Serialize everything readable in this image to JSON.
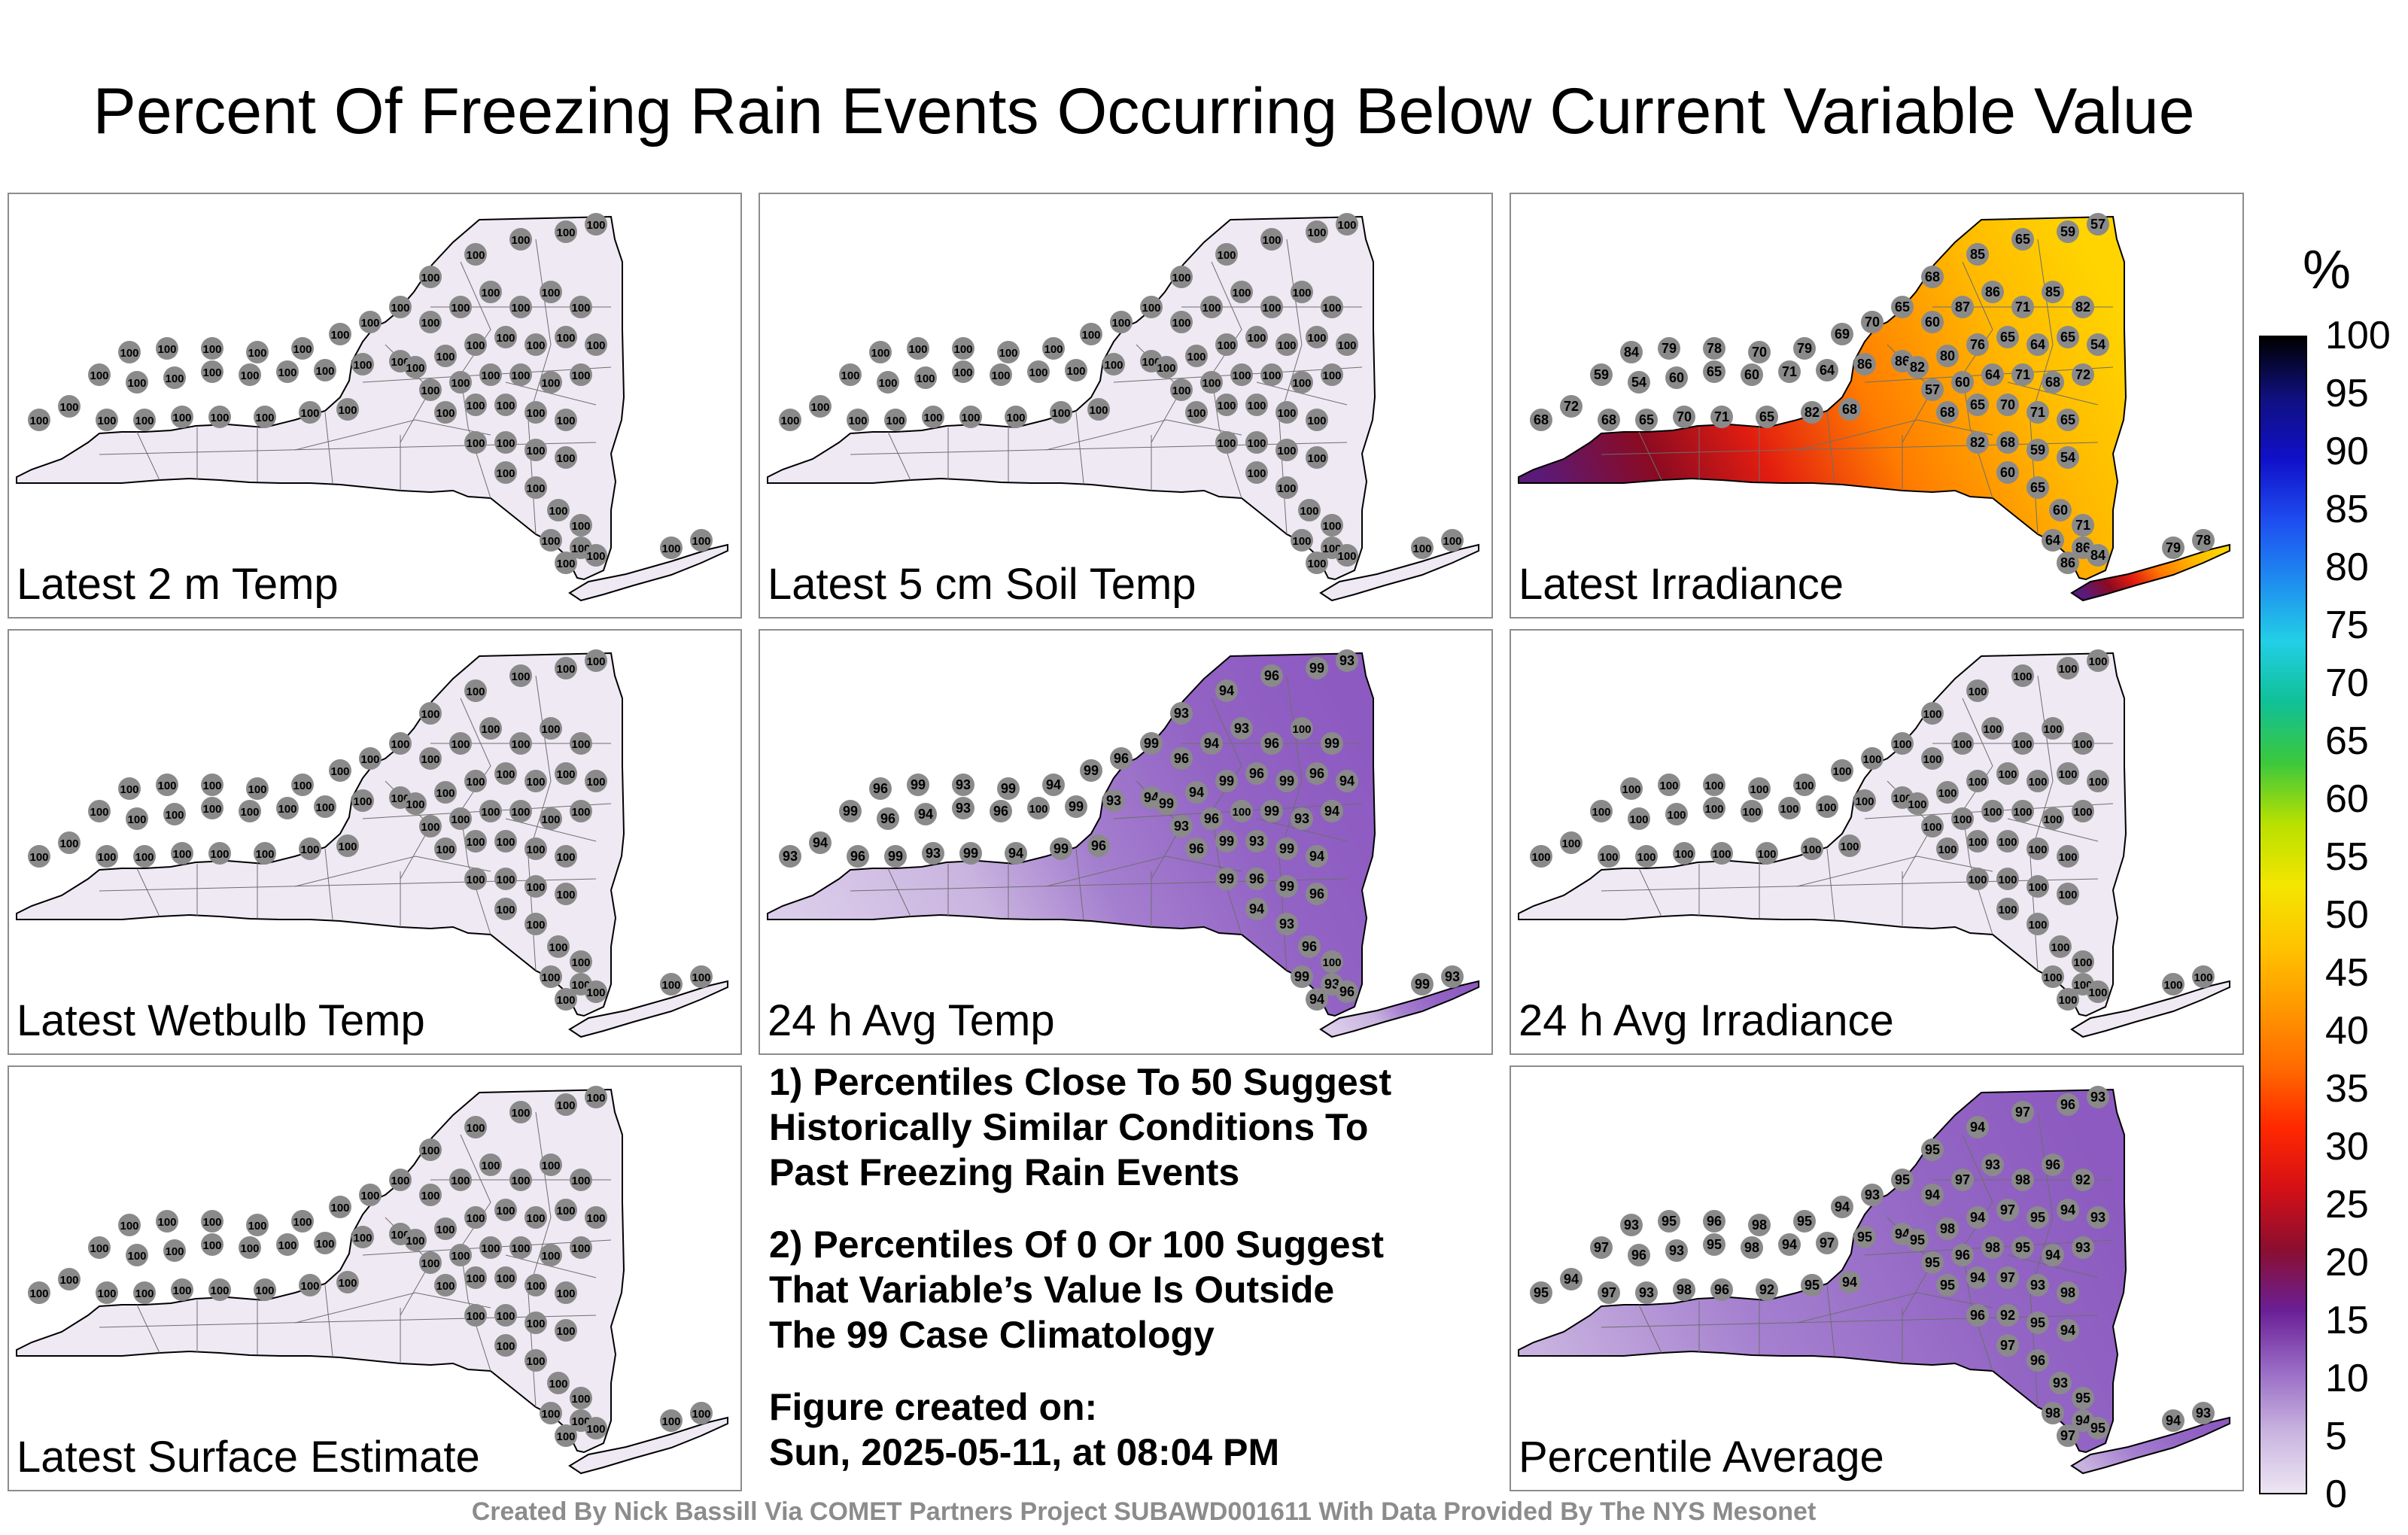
{
  "title": "Percent Of Freezing Rain Events Occurring Below Current Variable Value",
  "panels": [
    {
      "label": "Latest 2 m Temp",
      "shading": "100",
      "values": [
        "100"
      ]
    },
    {
      "label": "Latest 5 cm Soil Temp",
      "shading": "100",
      "values": [
        "100"
      ]
    },
    {
      "label": "Latest Irradiance",
      "shading": "irradiance",
      "values": [
        "68",
        "72",
        "68",
        "65",
        "70",
        "71",
        "65",
        "82",
        "68",
        "59",
        "54",
        "60",
        "65",
        "60",
        "71",
        "64",
        "86",
        "86",
        "84",
        "79",
        "78",
        "70",
        "79",
        "69",
        "70",
        "65",
        "60",
        "87",
        "86",
        "71",
        "85",
        "82",
        "68",
        "85",
        "65",
        "59",
        "57",
        "82",
        "80",
        "76",
        "65",
        "64",
        "65",
        "54",
        "57",
        "60",
        "64",
        "71"
      ]
    },
    {
      "label": "Latest Wetbulb Temp",
      "shading": "100",
      "values": [
        "100"
      ]
    },
    {
      "label": "24 h Avg Temp",
      "shading": "avg_temp",
      "values": [
        "93",
        "94",
        "96",
        "99",
        "93",
        "99",
        "94",
        "99",
        "96",
        "99",
        "96",
        "94",
        "93",
        "96",
        "100",
        "99"
      ]
    },
    {
      "label": "24 h Avg Irradiance",
      "shading": "100",
      "values": [
        "100"
      ]
    },
    {
      "label": "Latest Surface Estimate",
      "shading": "100",
      "values": [
        "100"
      ]
    },
    {
      "label": "Percentile Average",
      "shading": "average",
      "values": [
        "95",
        "94",
        "97",
        "93",
        "98",
        "96",
        "92",
        "95",
        "94",
        "97",
        "96",
        "93",
        "95",
        "98",
        "94",
        "97",
        "95",
        "94",
        "93",
        "95",
        "96",
        "98",
        "95",
        "94",
        "93"
      ]
    }
  ],
  "notes": [
    "1) Percentiles Close To 50 Suggest\nHistorically Similar Conditions To\nPast Freezing Rain Events",
    "2) Percentiles Of 0 Or 100 Suggest\nThat Variable’s Value Is Outside\nThe 99 Case Climatology",
    "Figure created on:\nSun, 2025-05-11, at 08:04 PM"
  ],
  "credit": "Created By Nick Bassill Via COMET Partners Project SUBAWD001611 With Data Provided By The NYS Mesonet",
  "colorbar": {
    "unit": "%",
    "ticks": [
      "100",
      "95",
      "90",
      "85",
      "80",
      "75",
      "70",
      "65",
      "60",
      "55",
      "50",
      "45",
      "40",
      "35",
      "30",
      "25",
      "20",
      "15",
      "10",
      "5",
      "0"
    ],
    "stops": [
      "#ece6f3",
      "#c9b4e0",
      "#9a6cc6",
      "#6a1f96",
      "#8b0e2f",
      "#d41016",
      "#ff2800",
      "#ff6b00",
      "#ff9900",
      "#ffc400",
      "#f3e600",
      "#b8e000",
      "#3cc83c",
      "#10c096",
      "#22cfe6",
      "#1e8cf0",
      "#1e4cf0",
      "#1010c8",
      "#101080",
      "#000000"
    ]
  }
}
